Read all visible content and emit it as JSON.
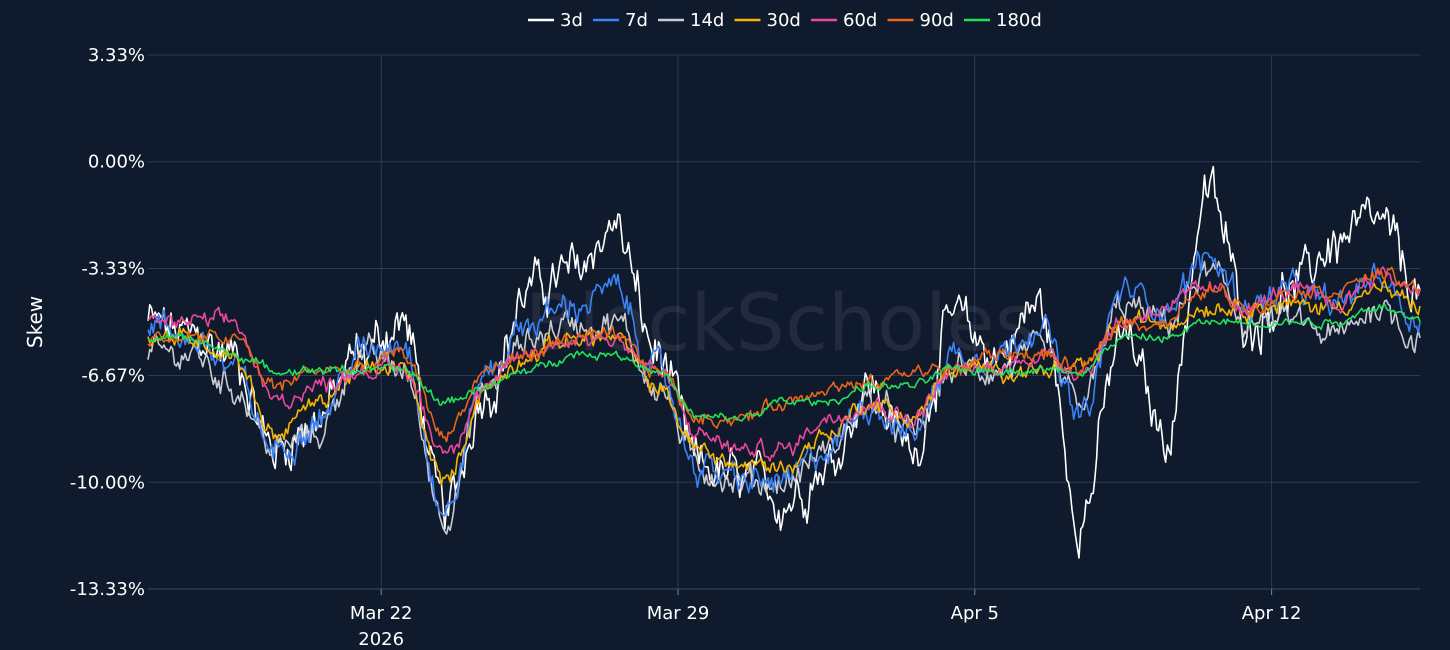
{
  "chart_data": {
    "type": "line",
    "ylabel": "Skew",
    "y_ticks": [
      "3.33%",
      "0.00%",
      "-3.33%",
      "-6.67%",
      "-10.00%",
      "-13.33%"
    ],
    "ylim": [
      -13.33,
      3.33
    ],
    "x_ticks": [
      {
        "date": "2026-03-22",
        "label": "Mar 22",
        "sublabel": "2026"
      },
      {
        "date": "2026-03-29",
        "label": "Mar 29",
        "sublabel": ""
      },
      {
        "date": "2026-04-05",
        "label": "Apr 5",
        "sublabel": ""
      },
      {
        "date": "2026-04-12",
        "label": "Apr 12",
        "sublabel": ""
      }
    ],
    "xlim": [
      "2026-03-16T12:00",
      "2026-04-15T12:00"
    ],
    "legend_position": "top-center",
    "watermark": "BlockScholes",
    "grid": true,
    "x": [
      "2026-03-16T12:00",
      "2026-03-17T12:00",
      "2026-03-18T12:00",
      "2026-03-19T12:00",
      "2026-03-20T12:00",
      "2026-03-21T12:00",
      "2026-03-22T12:00",
      "2026-03-23T12:00",
      "2026-03-24T12:00",
      "2026-03-25T12:00",
      "2026-03-26T12:00",
      "2026-03-27T12:00",
      "2026-03-28T12:00",
      "2026-03-29T12:00",
      "2026-03-30T12:00",
      "2026-03-31T12:00",
      "2026-04-01T12:00",
      "2026-04-02T12:00",
      "2026-04-03T12:00",
      "2026-04-04T12:00",
      "2026-04-05T12:00",
      "2026-04-06T12:00",
      "2026-04-07T12:00",
      "2026-04-08T12:00",
      "2026-04-09T12:00",
      "2026-04-10T12:00",
      "2026-04-11T12:00",
      "2026-04-12T12:00",
      "2026-04-13T12:00",
      "2026-04-14T12:00",
      "2026-04-15T12:00"
    ],
    "series": [
      {
        "name": "3d",
        "color": "#ffffff",
        "noise": 1.0,
        "values": [
          -5.0,
          -5.5,
          -6.0,
          -9.0,
          -8.0,
          -6.0,
          -5.0,
          -11.0,
          -7.0,
          -4.0,
          -3.5,
          -2.0,
          -6.0,
          -9.5,
          -10.0,
          -10.5,
          -9.5,
          -7.0,
          -9.0,
          -5.0,
          -6.0,
          -4.5,
          -11.0,
          -5.5,
          -8.5,
          -1.0,
          -5.0,
          -4.0,
          -2.5,
          -2.0,
          -4.0
        ]
      },
      {
        "name": "7d",
        "color": "#3b82f6",
        "noise": 0.6,
        "values": [
          -5.0,
          -5.5,
          -6.5,
          -9.0,
          -8.0,
          -6.0,
          -5.5,
          -11.0,
          -6.5,
          -5.0,
          -4.5,
          -4.0,
          -6.5,
          -9.5,
          -10.0,
          -10.0,
          -9.0,
          -7.5,
          -8.5,
          -6.0,
          -6.0,
          -5.0,
          -8.0,
          -4.0,
          -4.5,
          -3.0,
          -4.5,
          -4.0,
          -4.5,
          -3.5,
          -5.0
        ]
      },
      {
        "name": "14d",
        "color": "#c8ccd2",
        "noise": 0.6,
        "values": [
          -6.0,
          -6.0,
          -7.0,
          -9.0,
          -8.5,
          -6.0,
          -6.5,
          -11.0,
          -7.0,
          -5.5,
          -5.0,
          -5.0,
          -7.0,
          -9.5,
          -10.0,
          -10.0,
          -9.0,
          -7.5,
          -8.5,
          -6.5,
          -6.5,
          -6.0,
          -7.5,
          -4.5,
          -5.0,
          -3.5,
          -5.0,
          -5.0,
          -5.5,
          -4.5,
          -5.5
        ]
      },
      {
        "name": "30d",
        "color": "#f5b400",
        "noise": 0.35,
        "values": [
          -5.5,
          -5.5,
          -6.0,
          -8.5,
          -7.5,
          -6.5,
          -6.5,
          -10.0,
          -7.0,
          -6.0,
          -5.5,
          -5.5,
          -7.0,
          -9.0,
          -9.5,
          -9.5,
          -8.5,
          -7.5,
          -8.0,
          -6.5,
          -6.5,
          -6.5,
          -6.5,
          -5.0,
          -5.0,
          -4.5,
          -4.5,
          -4.5,
          -4.5,
          -4.0,
          -4.5
        ]
      },
      {
        "name": "60d",
        "color": "#ec4899",
        "noise": 0.35,
        "values": [
          -5.0,
          -5.0,
          -5.0,
          -7.5,
          -7.0,
          -6.5,
          -6.5,
          -9.0,
          -7.0,
          -6.0,
          -5.5,
          -5.5,
          -6.5,
          -8.5,
          -9.0,
          -9.0,
          -8.0,
          -7.5,
          -8.0,
          -6.5,
          -6.5,
          -6.0,
          -6.5,
          -5.0,
          -4.5,
          -4.0,
          -4.5,
          -4.0,
          -4.5,
          -3.5,
          -4.0
        ]
      },
      {
        "name": "90d",
        "color": "#e8651a",
        "noise": 0.3,
        "values": [
          -5.5,
          -5.5,
          -5.5,
          -7.0,
          -6.5,
          -6.5,
          -6.0,
          -8.5,
          -6.5,
          -6.0,
          -5.5,
          -5.5,
          -6.5,
          -8.0,
          -8.0,
          -7.5,
          -7.0,
          -7.0,
          -6.5,
          -6.5,
          -6.0,
          -6.0,
          -6.5,
          -5.0,
          -5.0,
          -4.0,
          -4.5,
          -4.0,
          -4.0,
          -3.5,
          -4.0
        ]
      },
      {
        "name": "180d",
        "color": "#22e05a",
        "noise": 0.18,
        "values": [
          -5.5,
          -5.5,
          -6.0,
          -6.5,
          -6.5,
          -6.5,
          -6.5,
          -7.5,
          -7.0,
          -6.5,
          -6.0,
          -6.0,
          -6.5,
          -8.0,
          -8.0,
          -7.5,
          -7.5,
          -7.0,
          -7.0,
          -6.5,
          -6.5,
          -6.5,
          -6.5,
          -5.5,
          -5.5,
          -5.0,
          -5.0,
          -5.0,
          -5.0,
          -4.5,
          -5.0
        ]
      }
    ]
  }
}
